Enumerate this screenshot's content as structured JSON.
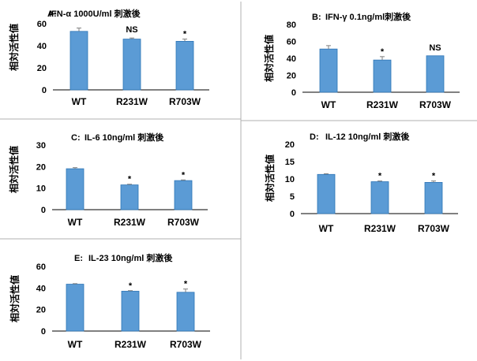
{
  "colors": {
    "bar": "#5b9bd5",
    "bar_edge": "#2e75b6",
    "axis": "#000000",
    "divider": "#b0b0b0"
  },
  "chart_data": [
    {
      "type": "bar",
      "panel": "A:",
      "title": "IFN-α 1000U/ml 刺激後",
      "ylabel": "相対活性値",
      "categories": [
        "WT",
        "R231W",
        "R703W"
      ],
      "values": [
        53,
        46,
        44
      ],
      "errors": [
        3,
        1,
        2
      ],
      "annotations": [
        "",
        "NS",
        "*"
      ],
      "ylim": [
        0,
        60
      ],
      "yticks": [
        0,
        20,
        40,
        60
      ]
    },
    {
      "type": "bar",
      "panel": "B:",
      "title": "IFN-γ 0.1ng/ml刺激後",
      "ylabel": "相対活性値",
      "categories": [
        "WT",
        "R231W",
        "R703W"
      ],
      "values": [
        51,
        38,
        43
      ],
      "errors": [
        4,
        4,
        0
      ],
      "annotations": [
        "",
        "*",
        "NS"
      ],
      "ylim": [
        0,
        80
      ],
      "yticks": [
        0,
        20,
        40,
        60,
        80
      ]
    },
    {
      "type": "bar",
      "panel": "C:",
      "title": "IL-6 10ng/ml 刺激後",
      "ylabel": "相対活性値",
      "categories": [
        "WT",
        "R231W",
        "R703W"
      ],
      "values": [
        19,
        11.5,
        13.5
      ],
      "errors": [
        0.5,
        0.3,
        0.3
      ],
      "annotations": [
        "",
        "*",
        "*"
      ],
      "ylim": [
        0,
        30
      ],
      "yticks": [
        0,
        10,
        20,
        30
      ]
    },
    {
      "type": "bar",
      "panel": "D:",
      "title": "IL-12 10ng/ml 刺激後",
      "ylabel": "相対活性値",
      "categories": [
        "WT",
        "R231W",
        "R703W"
      ],
      "values": [
        11.3,
        9.2,
        9
      ],
      "errors": [
        0.2,
        0.2,
        0.4
      ],
      "annotations": [
        "",
        "*",
        "*"
      ],
      "ylim": [
        0,
        20
      ],
      "yticks": [
        0,
        5,
        10,
        15,
        20
      ]
    },
    {
      "type": "bar",
      "panel": "E:",
      "title": "IL-23 10ng/ml 刺激後",
      "ylabel": "相対活性値",
      "categories": [
        "WT",
        "R231W",
        "R703W"
      ],
      "values": [
        43.5,
        37,
        36
      ],
      "errors": [
        0.5,
        0.5,
        3
      ],
      "annotations": [
        "",
        "*",
        "*"
      ],
      "ylim": [
        0,
        60
      ],
      "yticks": [
        0,
        20,
        40,
        60
      ]
    }
  ]
}
